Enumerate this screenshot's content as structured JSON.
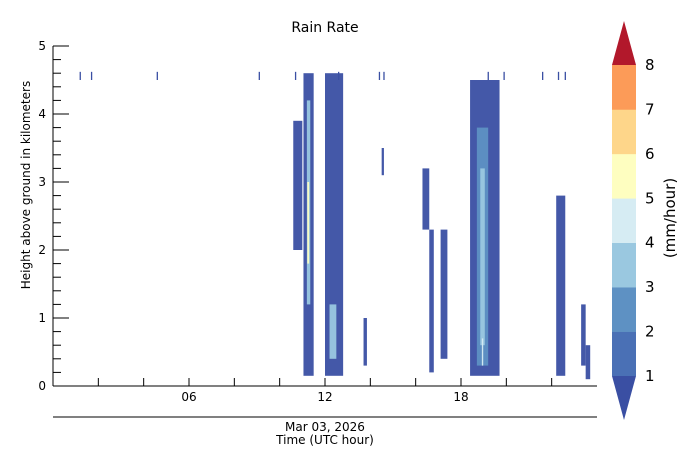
{
  "chart_data": {
    "type": "heatmap",
    "title": "Rain Rate",
    "ylabel": "Height above ground in kilometers",
    "xlabel_date": "Mar 03, 2026",
    "xlabel": "Time (UTC hour)",
    "xlim": [
      0,
      24
    ],
    "ylim": [
      0,
      5
    ],
    "x_ticks": [
      {
        "value": 6,
        "label": "06"
      },
      {
        "value": 12,
        "label": "12"
      },
      {
        "value": 18,
        "label": "18"
      }
    ],
    "x_minor_ticks": [
      2,
      4,
      8,
      10,
      14,
      16,
      20,
      22
    ],
    "y_ticks": [
      {
        "value": 0,
        "label": "0"
      },
      {
        "value": 1,
        "label": "1"
      },
      {
        "value": 2,
        "label": "2"
      },
      {
        "value": 3,
        "label": "3"
      },
      {
        "value": 4,
        "label": "4"
      },
      {
        "value": 5,
        "label": "5"
      }
    ],
    "colorbar": {
      "label": "(mm/hour)",
      "levels": [
        "1",
        "2",
        "3",
        "4",
        "5",
        "6",
        "7",
        "8"
      ],
      "under_color": "#3a4fa3",
      "over_color": "#b2182b",
      "colors": [
        "#4a70b5",
        "#5e91c3",
        "#9ac8e0",
        "#d6ecf3",
        "#fefec0",
        "#fed68a",
        "#fc9b58",
        "#e8543a"
      ]
    },
    "columns": [
      {
        "x0": 11.05,
        "x1": 11.5,
        "y0": 0.15,
        "y1": 4.6,
        "level": 1
      },
      {
        "x0": 11.2,
        "x1": 11.35,
        "y0": 1.2,
        "y1": 4.2,
        "level": 3
      },
      {
        "x0": 11.22,
        "x1": 11.3,
        "y0": 1.8,
        "y1": 3.0,
        "level": 5
      },
      {
        "x0": 10.6,
        "x1": 11.0,
        "y0": 2.0,
        "y1": 3.9,
        "level": 1
      },
      {
        "x0": 12.0,
        "x1": 12.8,
        "y0": 0.15,
        "y1": 4.6,
        "level": 1
      },
      {
        "x0": 12.2,
        "x1": 12.5,
        "y0": 0.4,
        "y1": 1.2,
        "level": 3
      },
      {
        "x0": 13.7,
        "x1": 13.85,
        "y0": 0.3,
        "y1": 1.0,
        "level": 1
      },
      {
        "x0": 14.5,
        "x1": 14.6,
        "y0": 3.1,
        "y1": 3.5,
        "level": 1
      },
      {
        "x0": 16.3,
        "x1": 16.6,
        "y0": 2.3,
        "y1": 3.2,
        "level": 1
      },
      {
        "x0": 16.6,
        "x1": 16.8,
        "y0": 0.2,
        "y1": 2.3,
        "level": 1
      },
      {
        "x0": 17.1,
        "x1": 17.4,
        "y0": 0.4,
        "y1": 2.3,
        "level": 1
      },
      {
        "x0": 18.4,
        "x1": 19.7,
        "y0": 0.15,
        "y1": 4.5,
        "level": 1
      },
      {
        "x0": 18.7,
        "x1": 19.2,
        "y0": 0.3,
        "y1": 3.8,
        "level": 2
      },
      {
        "x0": 18.85,
        "x1": 19.05,
        "y0": 0.6,
        "y1": 3.2,
        "level": 3
      },
      {
        "x0": 18.92,
        "x1": 18.98,
        "y0": 0.3,
        "y1": 0.7,
        "level": 4
      },
      {
        "x0": 22.2,
        "x1": 22.6,
        "y0": 0.15,
        "y1": 2.8,
        "level": 1
      },
      {
        "x0": 23.3,
        "x1": 23.5,
        "y0": 0.3,
        "y1": 1.2,
        "level": 1
      },
      {
        "x0": 23.5,
        "x1": 23.7,
        "y0": 0.1,
        "y1": 0.6,
        "level": 1
      }
    ],
    "top_streaks": [
      {
        "x": 1.2,
        "y0": 4.5,
        "y1": 4.62
      },
      {
        "x": 1.7,
        "y0": 4.5,
        "y1": 4.62
      },
      {
        "x": 4.6,
        "y0": 4.5,
        "y1": 4.62
      },
      {
        "x": 9.1,
        "y0": 4.5,
        "y1": 4.62
      },
      {
        "x": 10.7,
        "y0": 4.5,
        "y1": 4.62
      },
      {
        "x": 12.6,
        "y0": 4.5,
        "y1": 4.62
      },
      {
        "x": 14.4,
        "y0": 4.5,
        "y1": 4.62
      },
      {
        "x": 14.6,
        "y0": 4.5,
        "y1": 4.62
      },
      {
        "x": 19.2,
        "y0": 4.5,
        "y1": 4.62
      },
      {
        "x": 19.9,
        "y0": 4.5,
        "y1": 4.62
      },
      {
        "x": 21.6,
        "y0": 4.5,
        "y1": 4.62
      },
      {
        "x": 22.3,
        "y0": 4.5,
        "y1": 4.62
      },
      {
        "x": 22.6,
        "y0": 4.5,
        "y1": 4.62
      }
    ]
  }
}
